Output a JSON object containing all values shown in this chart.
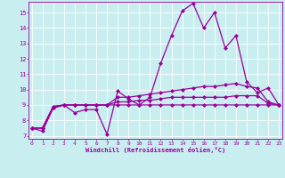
{
  "xlabel": "Windchill (Refroidissement éolien,°C)",
  "background_color": "#c8eef0",
  "line_color": "#990099",
  "grid_color": "#ffffff",
  "x_ticks": [
    0,
    1,
    2,
    3,
    4,
    5,
    6,
    7,
    8,
    9,
    10,
    11,
    12,
    13,
    14,
    15,
    16,
    17,
    18,
    19,
    20,
    21,
    22,
    23
  ],
  "y_ticks": [
    7,
    8,
    9,
    10,
    11,
    12,
    13,
    14,
    15
  ],
  "ylim": [
    6.8,
    15.7
  ],
  "xlim": [
    -0.3,
    23.3
  ],
  "series": [
    {
      "x": [
        0,
        1,
        2,
        3,
        4,
        5,
        6,
        7,
        8,
        9,
        10,
        11,
        12,
        13,
        14,
        15,
        16,
        17,
        18,
        19,
        20,
        21,
        22,
        23
      ],
      "y": [
        7.5,
        7.3,
        8.8,
        9.0,
        8.5,
        8.7,
        8.7,
        7.1,
        9.9,
        9.4,
        9.0,
        9.5,
        11.7,
        13.5,
        15.1,
        15.6,
        14.0,
        15.0,
        12.7,
        13.5,
        10.5,
        9.8,
        10.1,
        9.0
      ],
      "marker": "D",
      "markersize": 2,
      "linewidth": 0.9
    },
    {
      "x": [
        0,
        1,
        2,
        3,
        4,
        5,
        6,
        7,
        8,
        9,
        10,
        11,
        12,
        13,
        14,
        15,
        16,
        17,
        18,
        19,
        20,
        21,
        22,
        23
      ],
      "y": [
        7.5,
        7.5,
        8.8,
        9.0,
        9.0,
        9.0,
        9.0,
        9.0,
        9.5,
        9.5,
        9.6,
        9.7,
        9.8,
        9.9,
        10.0,
        10.1,
        10.2,
        10.2,
        10.3,
        10.4,
        10.2,
        10.1,
        9.2,
        9.0
      ],
      "marker": "D",
      "markersize": 2,
      "linewidth": 0.9
    },
    {
      "x": [
        0,
        1,
        2,
        3,
        4,
        5,
        6,
        7,
        8,
        9,
        10,
        11,
        12,
        13,
        14,
        15,
        16,
        17,
        18,
        19,
        20,
        21,
        22,
        23
      ],
      "y": [
        7.5,
        7.5,
        8.9,
        9.0,
        9.0,
        9.0,
        9.0,
        9.0,
        9.2,
        9.2,
        9.3,
        9.3,
        9.4,
        9.5,
        9.5,
        9.5,
        9.5,
        9.5,
        9.5,
        9.6,
        9.6,
        9.6,
        9.1,
        9.0
      ],
      "marker": "D",
      "markersize": 2,
      "linewidth": 0.9
    },
    {
      "x": [
        0,
        1,
        2,
        3,
        4,
        5,
        6,
        7,
        8,
        9,
        10,
        11,
        12,
        13,
        14,
        15,
        16,
        17,
        18,
        19,
        20,
        21,
        22,
        23
      ],
      "y": [
        7.5,
        7.5,
        8.9,
        9.0,
        9.0,
        9.0,
        9.0,
        9.0,
        9.0,
        9.0,
        9.0,
        9.0,
        9.0,
        9.0,
        9.0,
        9.0,
        9.0,
        9.0,
        9.0,
        9.0,
        9.0,
        9.0,
        9.0,
        9.0
      ],
      "marker": "D",
      "markersize": 2,
      "linewidth": 0.9
    }
  ]
}
